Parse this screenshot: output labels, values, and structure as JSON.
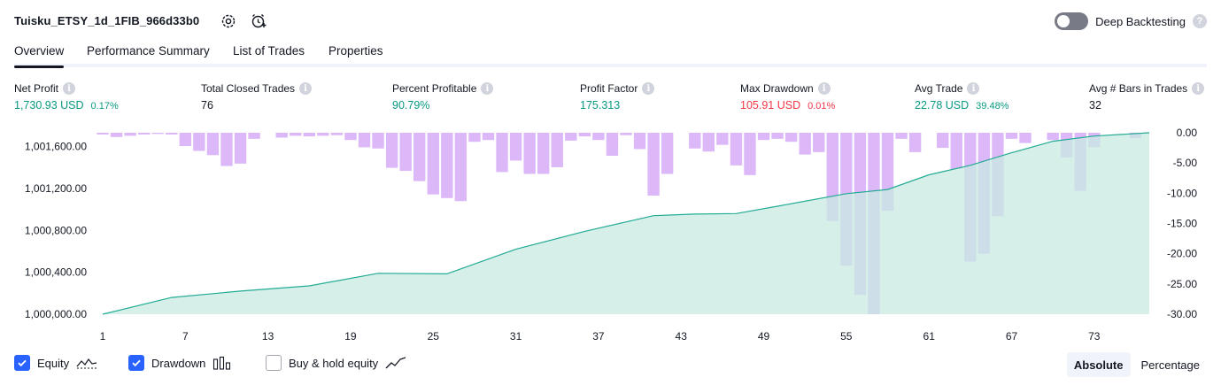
{
  "header": {
    "title": "Tuisku_ETSY_1d_1FIB_966d33b0",
    "deep_backtesting_label": "Deep Backtesting",
    "help_glyph": "?"
  },
  "tabs": [
    {
      "label": "Overview",
      "active": true
    },
    {
      "label": "Performance Summary",
      "active": false
    },
    {
      "label": "List of Trades",
      "active": false
    },
    {
      "label": "Properties",
      "active": false
    }
  ],
  "info_glyph": "i",
  "metrics": [
    {
      "label": "Net Profit",
      "value": "1,730.93 USD",
      "sub": "0.17%",
      "color": "green"
    },
    {
      "label": "Total Closed Trades",
      "value": "76",
      "sub": "",
      "color": "dark"
    },
    {
      "label": "Percent Profitable",
      "value": "90.79%",
      "sub": "",
      "color": "green"
    },
    {
      "label": "Profit Factor",
      "value": "175.313",
      "sub": "",
      "color": "green"
    },
    {
      "label": "Max Drawdown",
      "value": "105.91 USD",
      "sub": "0.01%",
      "color": "red"
    },
    {
      "label": "Avg Trade",
      "value": "22.78 USD",
      "sub": "39.48%",
      "color": "green"
    },
    {
      "label": "Avg # Bars in Trades",
      "value": "32",
      "sub": "",
      "color": "dark"
    }
  ],
  "colors": {
    "equity_line": "#22ab94",
    "equity_fill": "#c8ebe1",
    "drawdown_bar": "#dcb8f9",
    "accent": "#2962ff",
    "positive": "#089981",
    "negative": "#f23645"
  },
  "chart_data": {
    "type": "line",
    "x_ticks": [
      "1",
      "7",
      "13",
      "19",
      "25",
      "31",
      "37",
      "43",
      "49",
      "55",
      "61",
      "67",
      "73"
    ],
    "y_left_ticks": [
      "1,000,000.00",
      "1,000,400.00",
      "1,000,800.00",
      "1,001,200.00",
      "1,001,600.00"
    ],
    "y_left_tick_values": [
      1000000,
      1000400,
      1000800,
      1001200,
      1001600
    ],
    "y_right_ticks": [
      "0.00",
      "-5.00",
      "-10.00",
      "-15.00",
      "-20.00",
      "-25.00",
      "-30.00"
    ],
    "y_right_tick_values": [
      0,
      -5,
      -10,
      -15,
      -20,
      -25,
      -30
    ],
    "ylim_left": [
      1000000,
      1001730.93
    ],
    "ylim_right": [
      -30,
      0
    ],
    "xlim": [
      1,
      77
    ],
    "series": [
      {
        "name": "Equity",
        "kind": "area",
        "x": [
          1,
          6,
          11,
          16,
          21,
          26,
          31,
          36,
          41,
          44,
          47,
          50,
          55,
          58,
          61,
          64,
          67,
          70,
          73,
          77
        ],
        "values": [
          1000000,
          1000160,
          1000220,
          1000270,
          1000390,
          1000385,
          1000620,
          1000790,
          1000940,
          1000955,
          1000960,
          1001030,
          1001150,
          1001190,
          1001330,
          1001420,
          1001540,
          1001650,
          1001700,
          1001730.93
        ]
      },
      {
        "name": "Drawdown",
        "kind": "bar",
        "x": [
          1,
          2,
          3,
          4,
          5,
          6,
          7,
          8,
          9,
          10,
          11,
          12,
          13,
          14,
          15,
          16,
          17,
          18,
          19,
          20,
          21,
          22,
          23,
          24,
          25,
          26,
          27,
          28,
          29,
          30,
          31,
          32,
          33,
          34,
          35,
          36,
          37,
          38,
          39,
          40,
          41,
          42,
          43,
          44,
          45,
          46,
          47,
          48,
          49,
          50,
          51,
          52,
          53,
          54,
          55,
          56,
          57,
          58,
          59,
          60,
          61,
          62,
          63,
          64,
          65,
          66,
          67,
          68,
          69,
          70,
          71,
          72,
          73,
          74,
          75,
          76
        ],
        "values": [
          -0.3,
          -0.7,
          -0.5,
          -0.3,
          -0.2,
          -0.3,
          -2.2,
          -3.0,
          -3.7,
          -5.5,
          -5.1,
          -1.0,
          0,
          -0.8,
          -0.5,
          -0.6,
          -0.5,
          -0.4,
          -1.2,
          -2.4,
          -2.6,
          -5.8,
          -6.3,
          -8.0,
          -10.2,
          -10.8,
          -11.3,
          -1.5,
          -1.2,
          -6.5,
          -4.6,
          -6.8,
          -6.8,
          -5.7,
          -1.3,
          -0.6,
          -1.2,
          -3.8,
          -0.4,
          -2.7,
          -10.4,
          -6.8,
          0,
          -2.6,
          -3.1,
          -2.0,
          -5.4,
          -7.0,
          -1.2,
          -1.0,
          -1.5,
          -3.6,
          -3.2,
          -14.6,
          -22.0,
          -26.8,
          -30.0,
          -12.9,
          -1.0,
          -3.2,
          0,
          -2.5,
          -6.0,
          -21.3,
          -20.0,
          -13.8,
          -1.0,
          -1.7,
          0,
          -1.2,
          -4.1,
          -9.6,
          -2.4,
          0,
          0,
          -0.9
        ]
      }
    ]
  },
  "legend": [
    {
      "label": "Equity",
      "checked": true,
      "icon": "equity-wave-icon"
    },
    {
      "label": "Drawdown",
      "checked": true,
      "icon": "drawdown-bars-icon"
    },
    {
      "label": "Buy & hold equity",
      "checked": false,
      "icon": "buy-hold-line-icon"
    }
  ],
  "scale_toggle": {
    "options": [
      "Absolute",
      "Percentage"
    ],
    "selected": "Absolute"
  }
}
